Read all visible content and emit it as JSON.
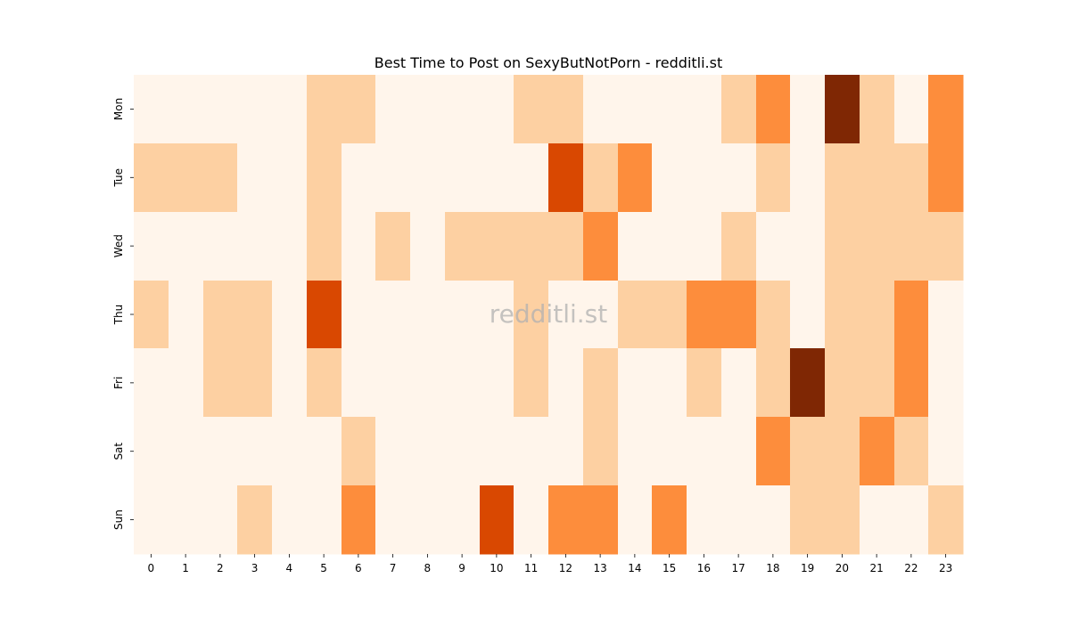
{
  "chart_data": {
    "type": "heatmap",
    "title": "Best Time to Post on SexyButNotPorn - redditli.st",
    "watermark": "redditli.st",
    "xlabel": "",
    "ylabel": "",
    "x_categories": [
      "0",
      "1",
      "2",
      "3",
      "4",
      "5",
      "6",
      "7",
      "8",
      "9",
      "10",
      "11",
      "12",
      "13",
      "14",
      "15",
      "16",
      "17",
      "18",
      "19",
      "20",
      "21",
      "22",
      "23"
    ],
    "y_categories": [
      "Mon",
      "Tue",
      "Wed",
      "Thu",
      "Fri",
      "Sat",
      "Sun"
    ],
    "values": [
      [
        0,
        0,
        0,
        0,
        0,
        1,
        1,
        0,
        0,
        0,
        0,
        1,
        1,
        0,
        0,
        0,
        0,
        1,
        2,
        0,
        4,
        1,
        0,
        2
      ],
      [
        1,
        1,
        1,
        0,
        0,
        1,
        0,
        0,
        0,
        0,
        0,
        0,
        3,
        1,
        2,
        0,
        0,
        0,
        1,
        0,
        1,
        1,
        1,
        2
      ],
      [
        0,
        0,
        0,
        0,
        0,
        1,
        0,
        1,
        0,
        1,
        1,
        1,
        1,
        2,
        0,
        0,
        0,
        1,
        0,
        0,
        1,
        1,
        1,
        1
      ],
      [
        1,
        0,
        1,
        1,
        0,
        3,
        0,
        0,
        0,
        0,
        0,
        1,
        0,
        0,
        1,
        1,
        2,
        2,
        1,
        0,
        1,
        1,
        2,
        0
      ],
      [
        0,
        0,
        1,
        1,
        0,
        1,
        0,
        0,
        0,
        0,
        0,
        1,
        0,
        1,
        0,
        0,
        1,
        0,
        1,
        4,
        1,
        1,
        2,
        0
      ],
      [
        0,
        0,
        0,
        0,
        0,
        0,
        1,
        0,
        0,
        0,
        0,
        0,
        0,
        1,
        0,
        0,
        0,
        0,
        2,
        1,
        1,
        2,
        1,
        0
      ],
      [
        0,
        0,
        0,
        1,
        0,
        0,
        2,
        0,
        0,
        0,
        3,
        0,
        2,
        2,
        0,
        2,
        0,
        0,
        0,
        1,
        1,
        0,
        0,
        1
      ]
    ],
    "value_range": [
      0,
      4
    ],
    "colormap": [
      "#fff5eb",
      "#fdd0a2",
      "#fd8d3c",
      "#d94801",
      "#7f2704"
    ],
    "grid": false,
    "legend": "none"
  }
}
